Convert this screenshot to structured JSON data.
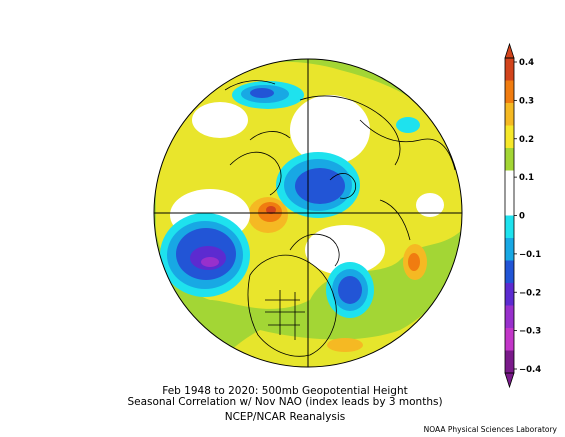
{
  "map": {
    "projection": "north polar stereographic",
    "variable": "500mb Geopotential Height seasonal correlation",
    "features": {
      "positive_center_atlantic": "orange",
      "negative_center_arctic": "blue",
      "negative_center_pacific": "blue-purple",
      "negative_center_northeast_us": "blue"
    }
  },
  "colorbar": {
    "tick_labels": [
      "0.4",
      "0.3",
      "0.2",
      "0.1",
      "0",
      "−0.1",
      "−0.2",
      "−0.3",
      "−0.4"
    ],
    "colors": [
      "#d2441c",
      "#f07c10",
      "#f5b923",
      "#f6e82a",
      "#a3d635",
      "#ffffff",
      "#ffffff",
      "#1ee2ee",
      "#18a8e4",
      "#2255d6",
      "#5c2bd0",
      "#9830cc",
      "#c236c8",
      "#7a1a8a"
    ]
  },
  "caption": {
    "line1": "Feb 1948 to 2020: 500mb Geopotential Height",
    "line2": "Seasonal Correlation w/ Nov NAO (index leads by 3 months)",
    "line3": "NCEP/NCAR Reanalysis"
  },
  "credit": "NOAA Physical Sciences Laboratory"
}
